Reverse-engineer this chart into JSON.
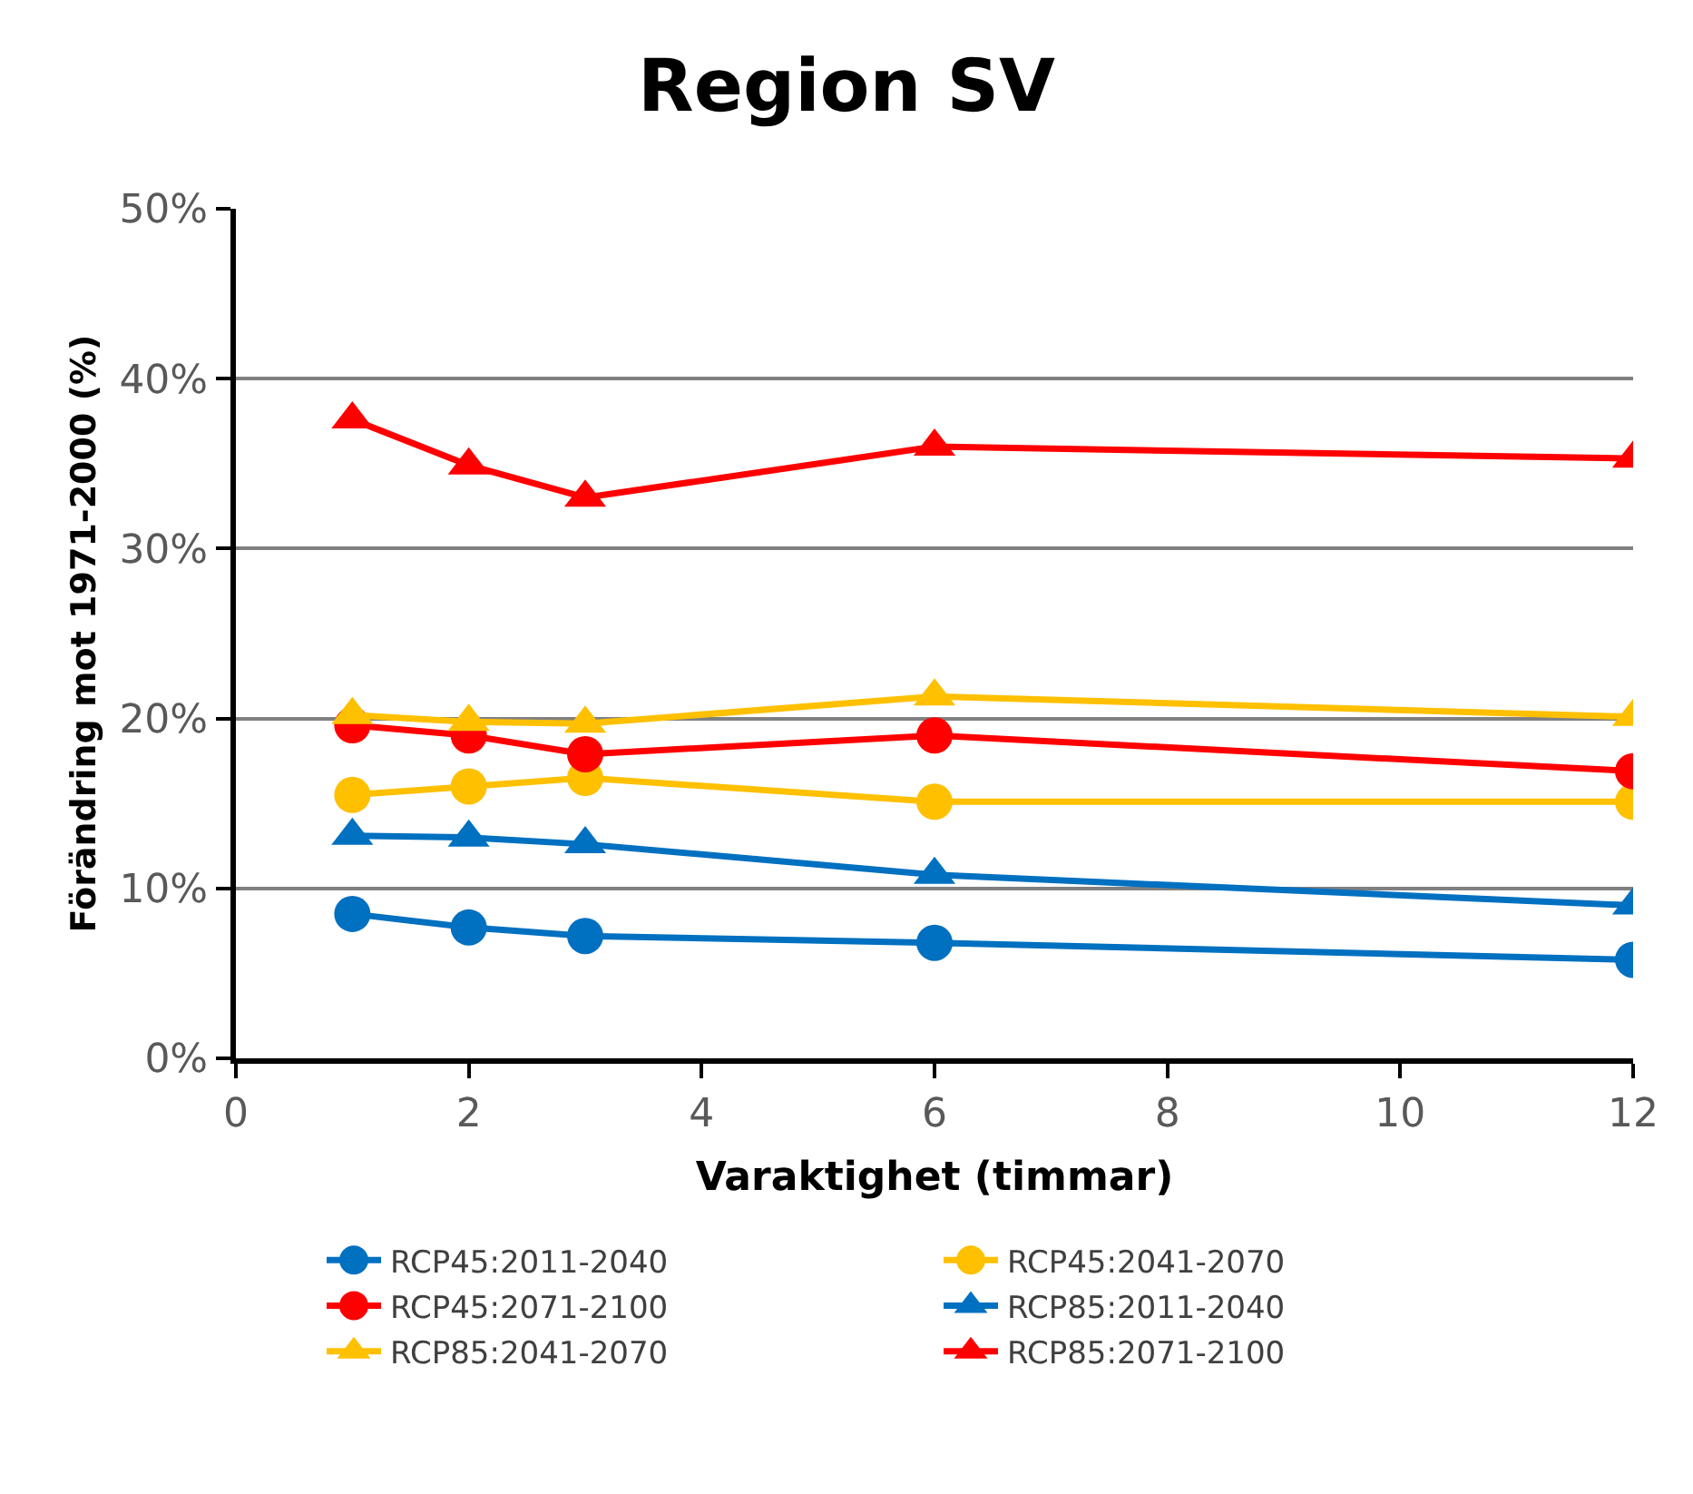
{
  "chart_data": {
    "type": "line",
    "title": "Region SV",
    "xlabel": "Varaktighet (timmar)",
    "ylabel": "Förändring mot 1971-2000 (%)",
    "x": [
      1,
      2,
      3,
      6,
      12
    ],
    "xlim": [
      0,
      12
    ],
    "xticks": [
      0,
      2,
      4,
      6,
      8,
      10,
      12
    ],
    "ylim": [
      0,
      50
    ],
    "yticks": [
      {
        "value": 0,
        "label": "0%"
      },
      {
        "value": 10,
        "label": "10%"
      },
      {
        "value": 20,
        "label": "20%"
      },
      {
        "value": 30,
        "label": "30%"
      },
      {
        "value": 40,
        "label": "40%"
      },
      {
        "value": 50,
        "label": "50%"
      }
    ],
    "grid": "y",
    "legend": "bottom",
    "series": [
      {
        "name": "RCP45:2011-2040",
        "color": "#0070c0",
        "marker": "circle",
        "values": [
          8.5,
          7.7,
          7.2,
          6.8,
          5.8
        ]
      },
      {
        "name": "RCP45:2041-2070",
        "color": "#ffc000",
        "marker": "circle",
        "values": [
          15.5,
          16.0,
          16.5,
          15.1,
          15.1
        ]
      },
      {
        "name": "RCP45:2071-2100",
        "color": "#ff0000",
        "marker": "circle",
        "values": [
          19.6,
          19.0,
          17.9,
          19.0,
          16.9
        ]
      },
      {
        "name": "RCP85:2011-2040",
        "color": "#0070c0",
        "marker": "triangle",
        "values": [
          13.1,
          13.0,
          12.6,
          10.8,
          9.0
        ]
      },
      {
        "name": "RCP85:2041-2070",
        "color": "#ffc000",
        "marker": "triangle",
        "values": [
          20.2,
          19.8,
          19.7,
          21.3,
          20.1
        ]
      },
      {
        "name": "RCP85:2071-2100",
        "color": "#ff0000",
        "marker": "triangle",
        "values": [
          37.6,
          34.9,
          33.0,
          36.0,
          35.3
        ]
      }
    ]
  }
}
